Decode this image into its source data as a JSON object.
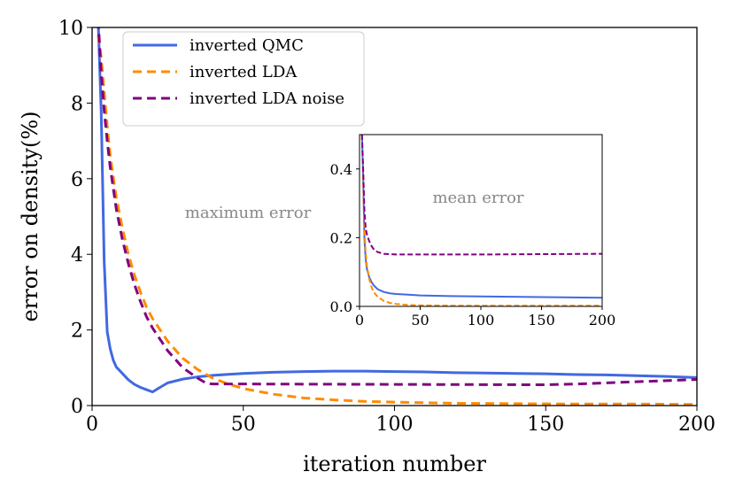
{
  "chart_data": [
    {
      "type": "line",
      "xlabel": "iteration number",
      "ylabel": "error on density(%)",
      "xlim": [
        0,
        200
      ],
      "ylim": [
        0,
        10
      ],
      "xticks": [
        0,
        50,
        100,
        150,
        200
      ],
      "yticks": [
        0,
        2,
        4,
        6,
        8,
        10
      ],
      "legend": "top-left",
      "annotation": "maximum error",
      "series": [
        {
          "name": "inverted QMC",
          "color": "#4169e1",
          "style": "solid",
          "x": [
            2,
            3,
            4,
            5,
            6,
            7,
            8,
            10,
            12,
            14,
            16,
            18,
            20,
            22,
            25,
            30,
            35,
            40,
            50,
            60,
            70,
            80,
            90,
            100,
            110,
            120,
            130,
            140,
            150,
            160,
            170,
            180,
            190,
            200
          ],
          "y": [
            10.2,
            7.8,
            3.8,
            1.95,
            1.5,
            1.2,
            1.02,
            0.85,
            0.68,
            0.56,
            0.48,
            0.42,
            0.36,
            0.46,
            0.6,
            0.7,
            0.76,
            0.8,
            0.85,
            0.88,
            0.9,
            0.91,
            0.91,
            0.9,
            0.89,
            0.87,
            0.86,
            0.85,
            0.84,
            0.82,
            0.81,
            0.79,
            0.77,
            0.74
          ]
        },
        {
          "name": "inverted LDA",
          "color": "#ff8c00",
          "style": "dashed",
          "x": [
            2,
            3,
            4,
            5,
            6,
            8,
            10,
            12,
            14,
            16,
            18,
            20,
            25,
            30,
            35,
            40,
            45,
            50,
            60,
            70,
            80,
            90,
            100,
            120,
            140,
            160,
            180,
            200
          ],
          "y": [
            9.8,
            9.2,
            8.3,
            7.4,
            6.6,
            5.5,
            4.7,
            4.0,
            3.45,
            3.0,
            2.6,
            2.3,
            1.7,
            1.25,
            0.95,
            0.72,
            0.57,
            0.45,
            0.3,
            0.2,
            0.15,
            0.11,
            0.09,
            0.06,
            0.05,
            0.04,
            0.04,
            0.03
          ]
        },
        {
          "name": "inverted LDA noise",
          "color": "#800080",
          "style": "dashed",
          "x": [
            2,
            3,
            4,
            5,
            6,
            8,
            10,
            12,
            14,
            16,
            18,
            20,
            25,
            30,
            35,
            38,
            40,
            50,
            100,
            150,
            160,
            170,
            180,
            190,
            200
          ],
          "y": [
            10.2,
            8.8,
            7.8,
            7.0,
            6.3,
            5.2,
            4.4,
            3.75,
            3.2,
            2.75,
            2.35,
            2.05,
            1.45,
            1.0,
            0.72,
            0.58,
            0.57,
            0.57,
            0.56,
            0.55,
            0.57,
            0.6,
            0.63,
            0.66,
            0.69
          ]
        }
      ]
    },
    {
      "type": "line",
      "inset": true,
      "annotation": "mean error",
      "xlim": [
        0,
        200
      ],
      "ylim": [
        0,
        0.5
      ],
      "xticks": [
        0,
        50,
        100,
        150,
        200
      ],
      "yticks": [
        0.0,
        0.2,
        0.4
      ],
      "series": [
        {
          "name": "inverted QMC",
          "color": "#4169e1",
          "style": "solid",
          "x": [
            2,
            3,
            4,
            5,
            6,
            8,
            10,
            12,
            15,
            20,
            25,
            30,
            40,
            50,
            75,
            100,
            150,
            200
          ],
          "y": [
            0.5,
            0.38,
            0.2,
            0.14,
            0.11,
            0.085,
            0.07,
            0.06,
            0.05,
            0.042,
            0.038,
            0.036,
            0.034,
            0.032,
            0.03,
            0.029,
            0.027,
            0.025
          ]
        },
        {
          "name": "inverted LDA",
          "color": "#ff8c00",
          "style": "dashed",
          "x": [
            2,
            3,
            4,
            5,
            6,
            8,
            10,
            12,
            15,
            20,
            25,
            30,
            40,
            50,
            75,
            100,
            150,
            200
          ],
          "y": [
            0.5,
            0.36,
            0.23,
            0.16,
            0.12,
            0.08,
            0.055,
            0.04,
            0.028,
            0.016,
            0.01,
            0.007,
            0.004,
            0.003,
            0.002,
            0.002,
            0.002,
            0.002
          ]
        },
        {
          "name": "inverted LDA noise",
          "color": "#800080",
          "style": "dashed",
          "x": [
            2,
            3,
            4,
            5,
            6,
            8,
            10,
            12,
            15,
            20,
            25,
            30,
            40,
            50,
            100,
            150,
            200
          ],
          "y": [
            0.5,
            0.4,
            0.28,
            0.23,
            0.21,
            0.19,
            0.175,
            0.165,
            0.158,
            0.153,
            0.152,
            0.151,
            0.151,
            0.151,
            0.151,
            0.152,
            0.153
          ]
        }
      ]
    }
  ]
}
